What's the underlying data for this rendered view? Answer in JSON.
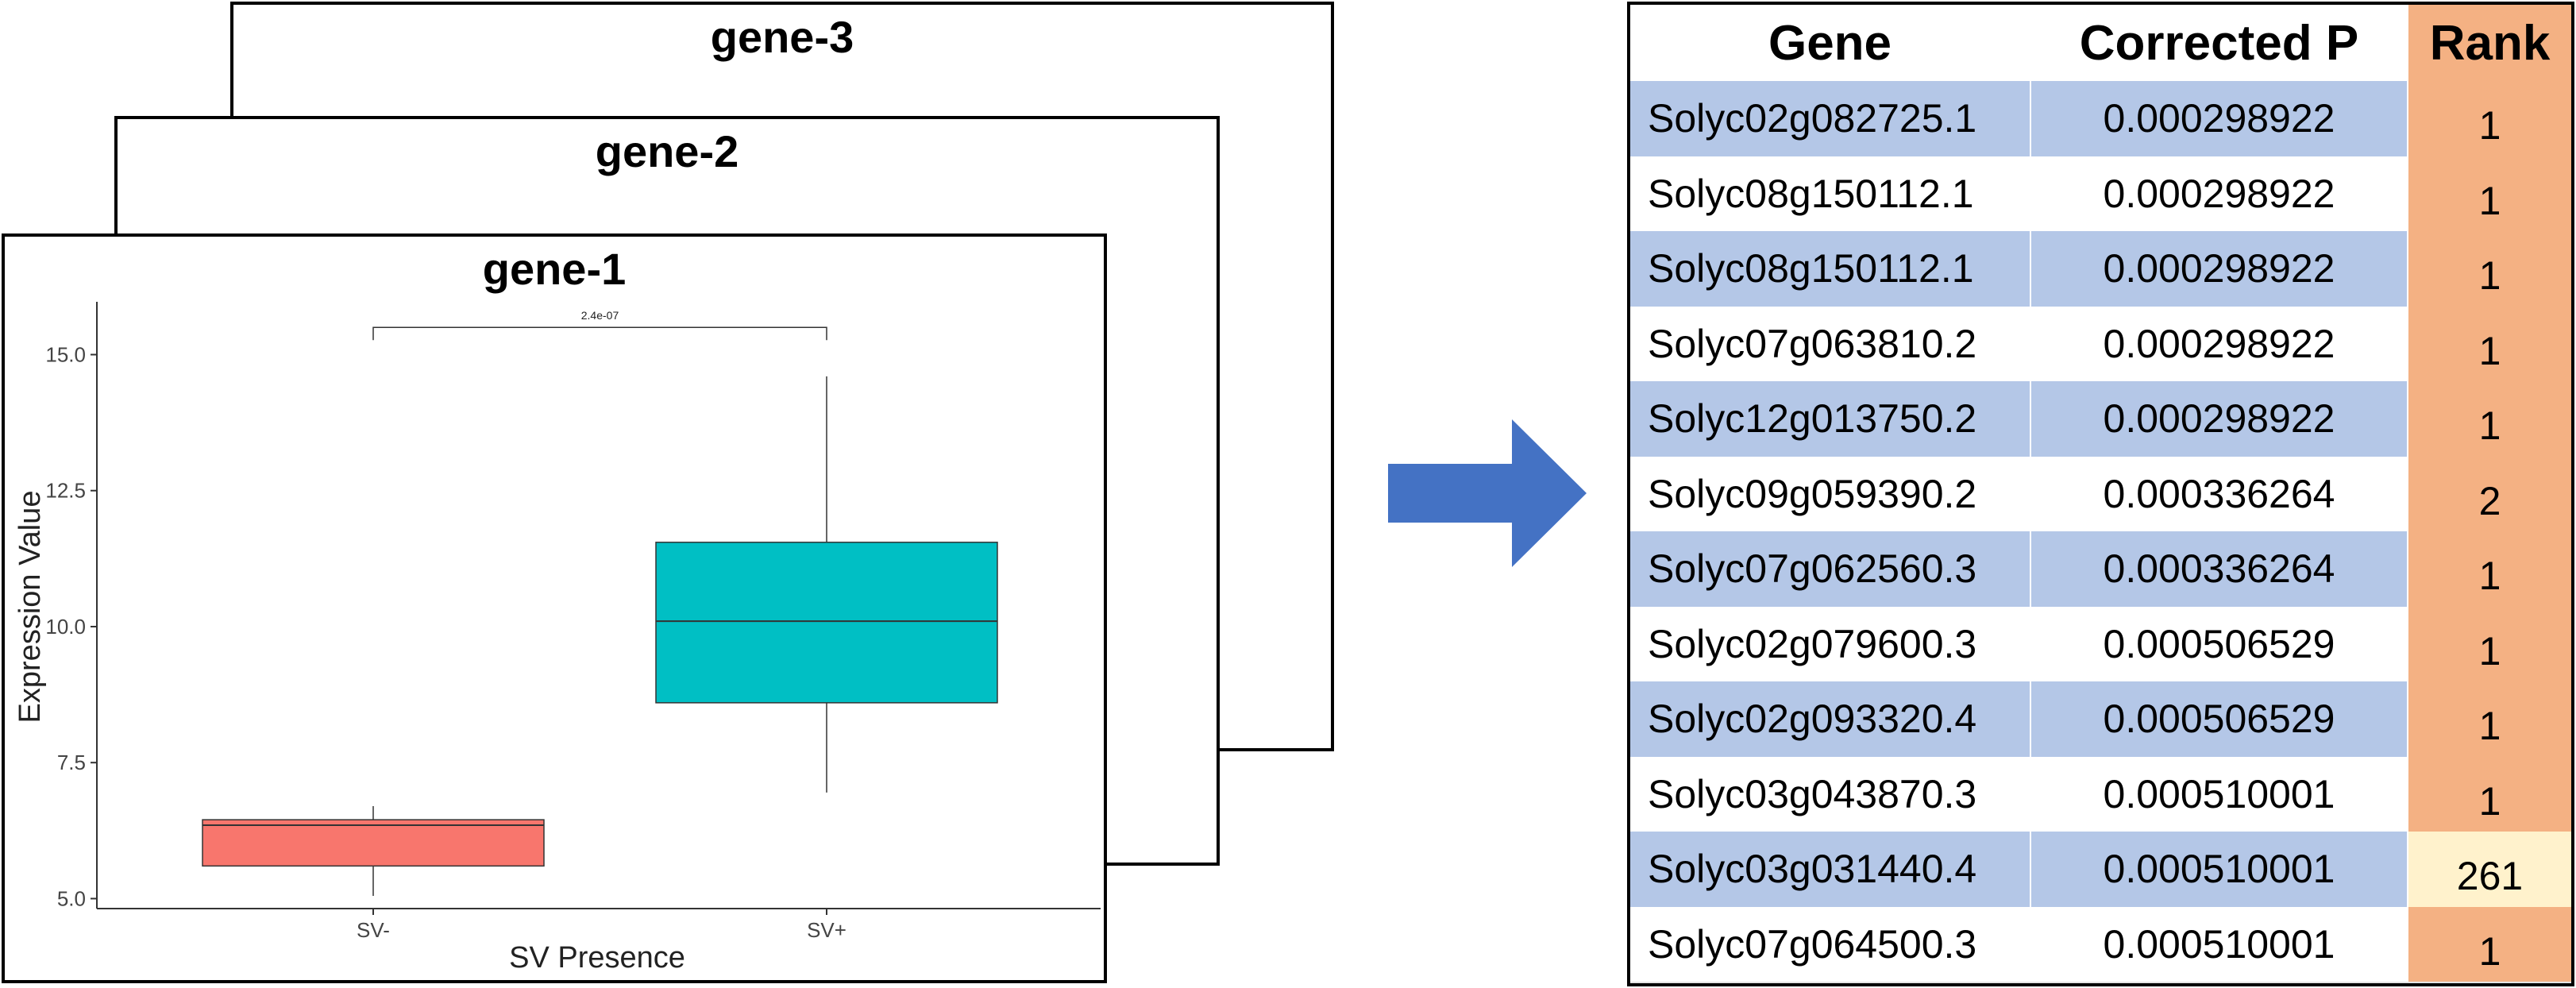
{
  "cards": {
    "back_title": "gene-3",
    "middle_title": "gene-2",
    "front_title": "gene-1"
  },
  "chart_data": {
    "type": "box",
    "title": "gene-1",
    "xlabel": "SV Presence",
    "ylabel": "Expression Value",
    "categories": [
      "SV-",
      "SV+"
    ],
    "yticks": [
      "5.0",
      "7.5",
      "10.0",
      "12.5",
      "15.0"
    ],
    "ylim": [
      4.7,
      16.0
    ],
    "boxes": [
      {
        "category": "SV-",
        "whisker_low": 5.05,
        "q1": 5.6,
        "median": 6.35,
        "q3": 6.45,
        "whisker_high": 6.7,
        "color": "#f8766d"
      },
      {
        "category": "SV+",
        "whisker_low": 6.95,
        "q1": 8.6,
        "median": 10.1,
        "q3": 11.55,
        "whisker_high": 14.6,
        "color": "#00bfc4"
      }
    ],
    "comparison": {
      "label": "2.4e-07",
      "y": 15.5
    },
    "grid": false,
    "legend": "none"
  },
  "table": {
    "headers": [
      "Gene",
      "Corrected P",
      "Rank"
    ],
    "rows": [
      {
        "gene": "Solyc02g082725.1",
        "p": "0.000298922",
        "rank": "1"
      },
      {
        "gene": "Solyc08g150112.1",
        "p": "0.000298922",
        "rank": "1"
      },
      {
        "gene": "Solyc08g150112.1",
        "p": "0.000298922",
        "rank": "1"
      },
      {
        "gene": "Solyc07g063810.2",
        "p": "0.000298922",
        "rank": "1"
      },
      {
        "gene": "Solyc12g013750.2",
        "p": "0.000298922",
        "rank": "1"
      },
      {
        "gene": "Solyc09g059390.2",
        "p": "0.000336264",
        "rank": "2"
      },
      {
        "gene": "Solyc07g062560.3",
        "p": "0.000336264",
        "rank": "1"
      },
      {
        "gene": "Solyc02g079600.3",
        "p": "0.000506529",
        "rank": "1"
      },
      {
        "gene": "Solyc02g093320.4",
        "p": "0.000506529",
        "rank": "1"
      },
      {
        "gene": "Solyc03g043870.3",
        "p": "0.000510001",
        "rank": "1"
      },
      {
        "gene": "Solyc03g031440.4",
        "p": "0.000510001",
        "rank": "261"
      },
      {
        "gene": "Solyc07g064500.3",
        "p": "0.000510001",
        "rank": "1"
      }
    ]
  },
  "colors": {
    "row_blue": "#b4c7e7",
    "row_white": "#ffffff",
    "rank_orange": "#f4b183",
    "rank_highlight": "#fff2cc",
    "arrow": "#4472c4"
  }
}
